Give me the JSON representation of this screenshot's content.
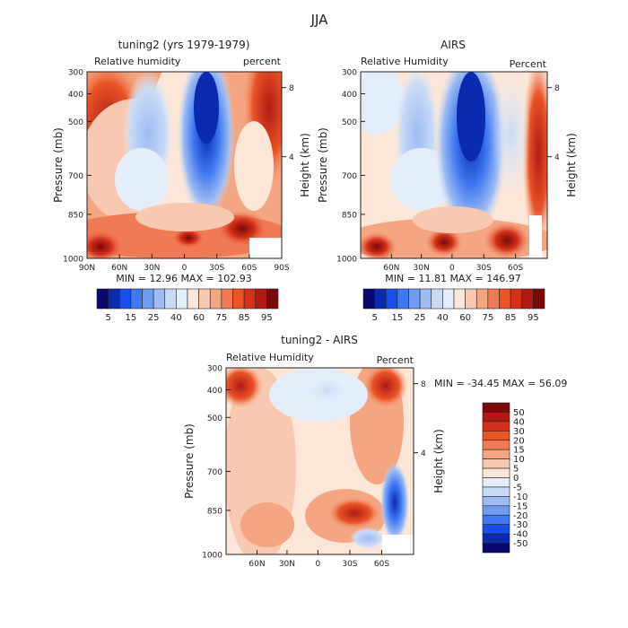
{
  "page_title": "JJA",
  "colors": {
    "abs_scale": [
      "#08086e",
      "#0a2bb0",
      "#1a4ee8",
      "#3f78f0",
      "#6f9cf0",
      "#9ebcf2",
      "#c8daf6",
      "#e4eefa",
      "#fbe6d8",
      "#f8c9b0",
      "#f4a582",
      "#f07a55",
      "#ea5426",
      "#d4301a",
      "#b01a14",
      "#7a0a0a"
    ],
    "diff_scale": [
      "#08086e",
      "#0a2bb0",
      "#1a4ee8",
      "#3f78f0",
      "#6f9cf0",
      "#9ebcf2",
      "#c8daf6",
      "#e4eefa",
      "#fbe6d8",
      "#f8c9b0",
      "#f4a582",
      "#f07a55",
      "#ea5426",
      "#d4301a",
      "#b01a14",
      "#7a0a0a"
    ]
  },
  "chart_data": [
    {
      "type": "heatmap",
      "title": "tuning2 (yrs 1979-1979)",
      "variable_label": "Relative humidity",
      "units_label": "percent",
      "ylabel": "Pressure (mb)",
      "y2label": "Height (km)",
      "yticks": [
        "300",
        "400",
        "500",
        "700",
        "850",
        "1000"
      ],
      "y2ticks": [
        "8",
        "4"
      ],
      "xticks": [
        "90N",
        "60N",
        "30N",
        "0",
        "30S",
        "60S",
        "90S"
      ],
      "stats": "MIN =   12.96   MAX =  102.93",
      "colorbar_labels": [
        "5",
        "15",
        "25",
        "40",
        "60",
        "75",
        "85",
        "95"
      ]
    },
    {
      "type": "heatmap",
      "title": "AIRS",
      "variable_label": "Relative Humidity",
      "units_label": "Percent",
      "ylabel": "Pressure (mb)",
      "y2label": "Height (km)",
      "yticks": [
        "300",
        "400",
        "500",
        "700",
        "850",
        "1000"
      ],
      "y2ticks": [
        "8",
        "4"
      ],
      "xticks": [
        "60N",
        "30N",
        "0",
        "30S",
        "60S"
      ],
      "stats": "MIN =   11.81   MAX =  146.97",
      "colorbar_labels": [
        "5",
        "15",
        "25",
        "40",
        "60",
        "75",
        "85",
        "95"
      ]
    },
    {
      "type": "heatmap",
      "title": "tuning2 - AIRS",
      "variable_label": "Relative Humidity",
      "units_label": "Percent",
      "ylabel": "Pressure (mb)",
      "y2label": "Height (km)",
      "yticks": [
        "300",
        "400",
        "500",
        "700",
        "850",
        "1000"
      ],
      "y2ticks": [
        "8",
        "4"
      ],
      "xticks": [
        "60N",
        "30N",
        "0",
        "30S",
        "60S"
      ],
      "stats": "MIN = -34.45   MAX =  56.09",
      "colorbar_labels": [
        "50",
        "40",
        "30",
        "20",
        "15",
        "10",
        "5",
        "0",
        "-5",
        "-10",
        "-15",
        "-20",
        "-30",
        "-40",
        "-50"
      ]
    }
  ]
}
